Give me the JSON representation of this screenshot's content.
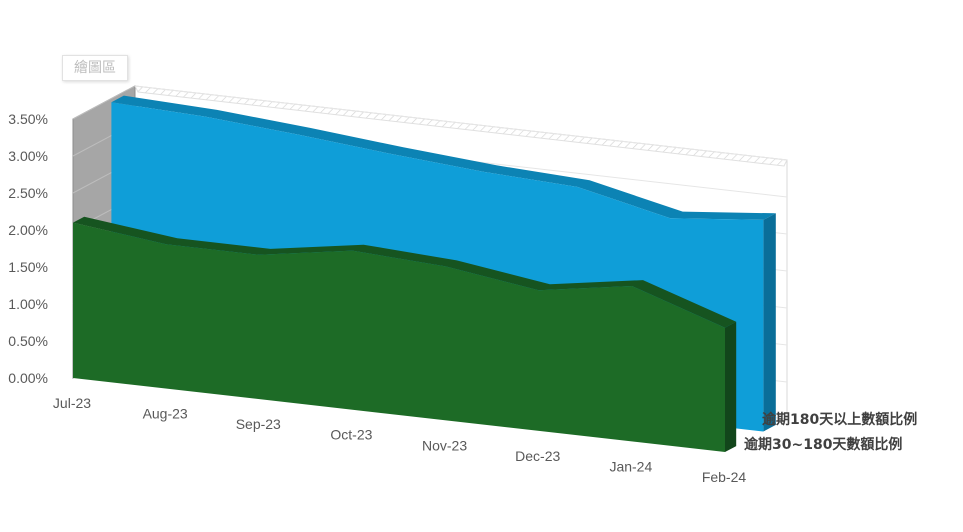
{
  "plot_area_label": "繪圖區",
  "chart_data": {
    "type": "area",
    "view": "3d",
    "categories": [
      "Jul-23",
      "Aug-23",
      "Sep-23",
      "Oct-23",
      "Nov-23",
      "Dec-23",
      "Jan-24",
      "Feb-24"
    ],
    "y_ticks": [
      "0.00%",
      "0.50%",
      "1.00%",
      "1.50%",
      "2.00%",
      "2.50%",
      "3.00%",
      "3.50%"
    ],
    "ylim": [
      0,
      0.035
    ],
    "grid": true,
    "series": [
      {
        "name": "逾期180天以上數額比例",
        "color": "#0f9ed8",
        "values": [
          0.0345,
          0.034,
          0.033,
          0.0318,
          0.0308,
          0.0302,
          0.0274,
          0.0286
        ]
      },
      {
        "name": "逾期30~180天數額比例",
        "color": "#1d6b26",
        "values": [
          0.021,
          0.0195,
          0.0195,
          0.0215,
          0.0208,
          0.019,
          0.021,
          0.0168
        ]
      }
    ]
  }
}
